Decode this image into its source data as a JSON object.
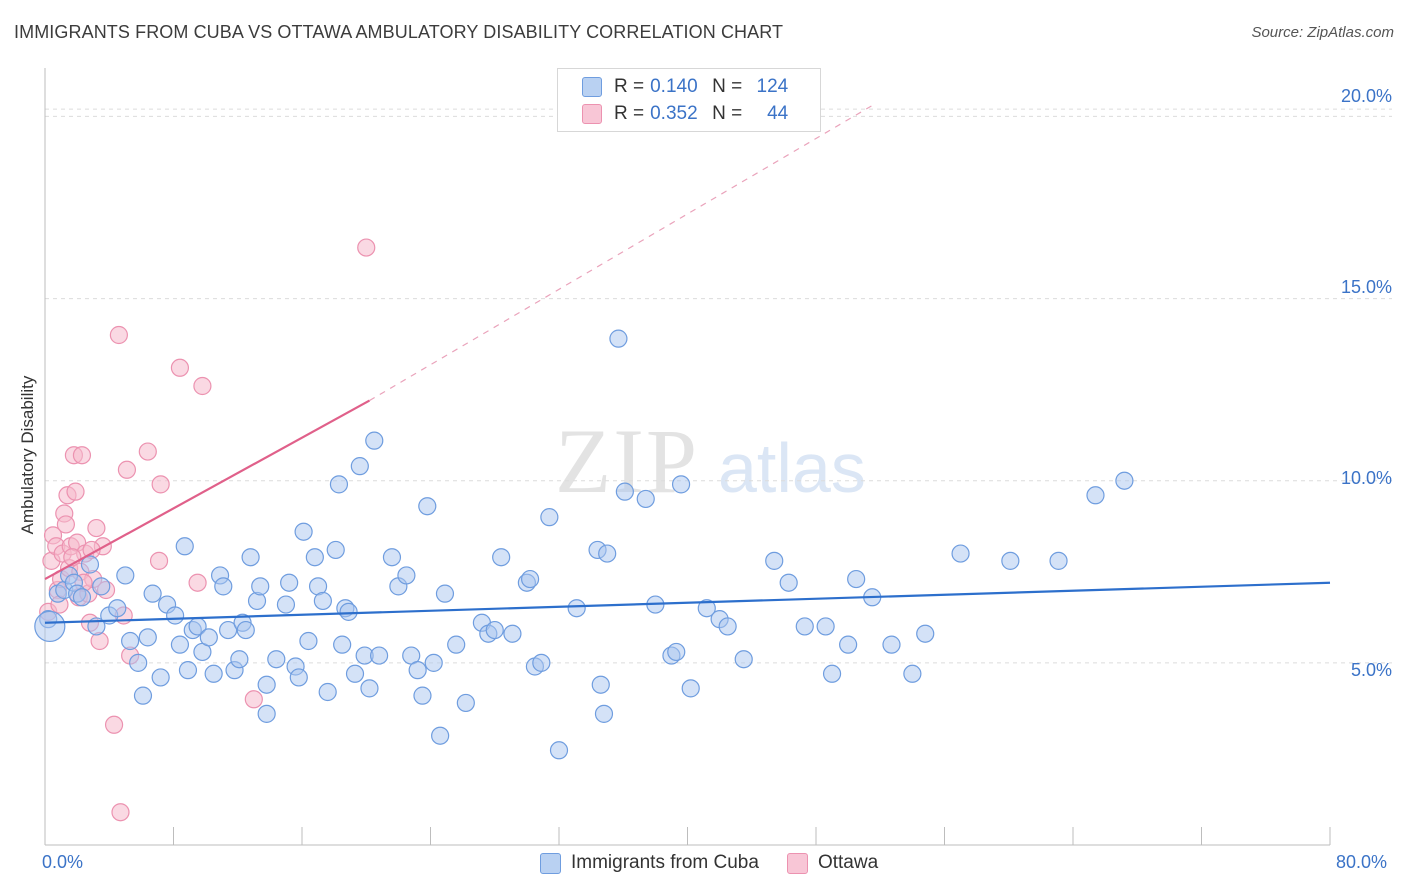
{
  "header": {
    "title": "IMMIGRANTS FROM CUBA VS OTTAWA AMBULATORY DISABILITY CORRELATION CHART",
    "source": "Source: ZipAtlas.com"
  },
  "legend_top": {
    "rows": [
      {
        "r_label": "R =",
        "r_value": "0.140",
        "n_label": "N =",
        "n_value": "124"
      },
      {
        "r_label": "R =",
        "r_value": "0.352",
        "n_label": "N =",
        "n_value": "44"
      }
    ]
  },
  "legend_bottom": {
    "items": [
      {
        "label": "Immigrants from Cuba"
      },
      {
        "label": "Ottawa"
      }
    ]
  },
  "axis": {
    "ylabel": "Ambulatory Disability",
    "x_min_label": "0.0%",
    "x_max_label": "80.0%",
    "y_tick_labels": [
      "5.0%",
      "10.0%",
      "15.0%",
      "20.0%"
    ]
  },
  "colors": {
    "blue": "#3b73c7",
    "blue_fill": "#a9c6ef",
    "blue_line": "#2d6fcc",
    "pink_fill": "#f5b9cc",
    "pink_line": "#e0608a",
    "grid": "#dcdcdc"
  },
  "chart_data": {
    "type": "scatter",
    "title": "IMMIGRANTS FROM CUBA VS OTTAWA AMBULATORY DISABILITY CORRELATION CHART",
    "xlabel": "",
    "ylabel": "Ambulatory Disability",
    "xlim": [
      0,
      80
    ],
    "ylim": [
      0,
      21
    ],
    "y_ticks": [
      5,
      10,
      15,
      20
    ],
    "grid": true,
    "legend_position": "top-center",
    "series": [
      {
        "name": "Immigrants from Cuba",
        "R": 0.14,
        "N": 124,
        "trend": {
          "x": [
            0,
            80
          ],
          "y": [
            6.1,
            7.2
          ],
          "style": "solid"
        },
        "points": [
          [
            0.2,
            6.2
          ],
          [
            0.8,
            6.9
          ],
          [
            1.2,
            7.0
          ],
          [
            1.5,
            7.4
          ],
          [
            1.8,
            7.2
          ],
          [
            2.0,
            6.9
          ],
          [
            2.3,
            6.8
          ],
          [
            2.8,
            7.7
          ],
          [
            3.2,
            6.0
          ],
          [
            3.5,
            7.1
          ],
          [
            4.0,
            6.3
          ],
          [
            4.5,
            6.5
          ],
          [
            5.0,
            7.4
          ],
          [
            5.3,
            5.6
          ],
          [
            5.8,
            5.0
          ],
          [
            6.1,
            4.1
          ],
          [
            6.4,
            5.7
          ],
          [
            6.7,
            6.9
          ],
          [
            7.2,
            4.6
          ],
          [
            7.6,
            6.6
          ],
          [
            8.1,
            6.3
          ],
          [
            8.4,
            5.5
          ],
          [
            8.7,
            8.2
          ],
          [
            8.9,
            4.8
          ],
          [
            9.2,
            5.9
          ],
          [
            9.5,
            6.0
          ],
          [
            9.8,
            5.3
          ],
          [
            10.2,
            5.7
          ],
          [
            10.5,
            4.7
          ],
          [
            10.9,
            7.4
          ],
          [
            11.1,
            7.1
          ],
          [
            11.4,
            5.9
          ],
          [
            11.8,
            4.8
          ],
          [
            12.1,
            5.1
          ],
          [
            12.3,
            6.1
          ],
          [
            12.5,
            5.9
          ],
          [
            12.8,
            7.9
          ],
          [
            13.2,
            6.7
          ],
          [
            13.4,
            7.1
          ],
          [
            13.8,
            4.4
          ],
          [
            13.8,
            3.6
          ],
          [
            14.4,
            5.1
          ],
          [
            15.0,
            6.6
          ],
          [
            15.2,
            7.2
          ],
          [
            15.6,
            4.9
          ],
          [
            15.8,
            4.6
          ],
          [
            16.1,
            8.6
          ],
          [
            16.4,
            5.6
          ],
          [
            16.8,
            7.9
          ],
          [
            17.0,
            7.1
          ],
          [
            17.3,
            6.7
          ],
          [
            17.6,
            4.2
          ],
          [
            18.1,
            8.1
          ],
          [
            18.3,
            9.9
          ],
          [
            18.5,
            5.5
          ],
          [
            18.7,
            6.5
          ],
          [
            18.9,
            6.4
          ],
          [
            19.3,
            4.7
          ],
          [
            19.6,
            10.4
          ],
          [
            19.9,
            5.2
          ],
          [
            20.2,
            4.3
          ],
          [
            20.5,
            11.1
          ],
          [
            20.8,
            5.2
          ],
          [
            21.6,
            7.9
          ],
          [
            22.0,
            7.1
          ],
          [
            22.5,
            7.4
          ],
          [
            22.8,
            5.2
          ],
          [
            23.2,
            4.8
          ],
          [
            23.5,
            4.1
          ],
          [
            23.8,
            9.3
          ],
          [
            24.2,
            5.0
          ],
          [
            24.6,
            3.0
          ],
          [
            24.9,
            6.9
          ],
          [
            25.6,
            5.5
          ],
          [
            26.2,
            3.9
          ],
          [
            27.2,
            6.1
          ],
          [
            27.6,
            5.8
          ],
          [
            28.0,
            5.9
          ],
          [
            28.4,
            7.9
          ],
          [
            29.1,
            5.8
          ],
          [
            30.0,
            7.2
          ],
          [
            30.2,
            7.3
          ],
          [
            30.5,
            4.9
          ],
          [
            30.9,
            5.0
          ],
          [
            31.4,
            9.0
          ],
          [
            32.0,
            2.6
          ],
          [
            33.1,
            6.5
          ],
          [
            34.4,
            8.1
          ],
          [
            34.6,
            4.4
          ],
          [
            34.8,
            3.6
          ],
          [
            35.0,
            8.0
          ],
          [
            35.7,
            13.9
          ],
          [
            36.1,
            9.7
          ],
          [
            37.4,
            9.5
          ],
          [
            38.0,
            6.6
          ],
          [
            39.0,
            5.2
          ],
          [
            39.3,
            5.3
          ],
          [
            39.6,
            9.9
          ],
          [
            40.2,
            4.3
          ],
          [
            41.2,
            6.5
          ],
          [
            42.0,
            6.2
          ],
          [
            42.5,
            6.0
          ],
          [
            43.5,
            5.1
          ],
          [
            45.4,
            7.8
          ],
          [
            46.3,
            7.2
          ],
          [
            47.3,
            6.0
          ],
          [
            48.6,
            6.0
          ],
          [
            49.0,
            4.7
          ],
          [
            50.0,
            5.5
          ],
          [
            50.5,
            7.3
          ],
          [
            51.5,
            6.8
          ],
          [
            52.7,
            5.5
          ],
          [
            54.0,
            4.7
          ],
          [
            54.8,
            5.8
          ],
          [
            57.0,
            8.0
          ],
          [
            60.1,
            7.8
          ],
          [
            63.1,
            7.8
          ],
          [
            65.4,
            9.6
          ],
          [
            67.2,
            10.0
          ],
          [
            0.3,
            6.0
          ]
        ]
      },
      {
        "name": "Ottawa",
        "R": 0.352,
        "N": 44,
        "trend": {
          "x": [
            0,
            20.2
          ],
          "y": [
            7.3,
            12.2
          ],
          "style": "solid"
        },
        "trend_extension": {
          "x": [
            20.2,
            51.5
          ],
          "y": [
            12.2,
            20.3
          ],
          "style": "dashed"
        },
        "points": [
          [
            0.2,
            6.4
          ],
          [
            0.4,
            7.8
          ],
          [
            0.5,
            8.5
          ],
          [
            0.7,
            8.2
          ],
          [
            0.8,
            7.0
          ],
          [
            1.0,
            7.3
          ],
          [
            1.1,
            8.0
          ],
          [
            1.2,
            9.1
          ],
          [
            1.3,
            8.8
          ],
          [
            1.4,
            9.6
          ],
          [
            1.5,
            7.6
          ],
          [
            1.6,
            8.2
          ],
          [
            1.8,
            10.7
          ],
          [
            1.9,
            9.7
          ],
          [
            2.0,
            8.3
          ],
          [
            2.1,
            6.8
          ],
          [
            2.2,
            7.5
          ],
          [
            2.3,
            10.7
          ],
          [
            2.5,
            8.0
          ],
          [
            2.7,
            6.9
          ],
          [
            2.8,
            6.1
          ],
          [
            3.0,
            7.3
          ],
          [
            3.2,
            8.7
          ],
          [
            3.4,
            5.6
          ],
          [
            3.6,
            8.2
          ],
          [
            4.3,
            3.3
          ],
          [
            4.6,
            14.0
          ],
          [
            4.7,
            0.9
          ],
          [
            4.9,
            6.3
          ],
          [
            5.1,
            10.3
          ],
          [
            5.3,
            5.2
          ],
          [
            6.4,
            10.8
          ],
          [
            7.1,
            7.8
          ],
          [
            7.2,
            9.9
          ],
          [
            8.4,
            13.1
          ],
          [
            9.5,
            7.2
          ],
          [
            9.8,
            12.6
          ],
          [
            13.0,
            4.0
          ],
          [
            20.0,
            16.4
          ],
          [
            2.4,
            7.2
          ],
          [
            1.7,
            7.9
          ],
          [
            0.9,
            6.6
          ],
          [
            3.8,
            7.0
          ],
          [
            2.9,
            8.1
          ]
        ]
      }
    ]
  }
}
